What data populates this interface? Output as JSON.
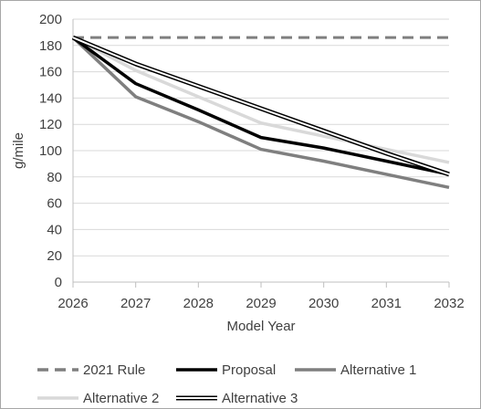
{
  "chart_data": {
    "type": "line",
    "title": "",
    "xlabel": "Model Year",
    "ylabel": "g/mile",
    "x": [
      2026,
      2027,
      2028,
      2029,
      2030,
      2031,
      2032
    ],
    "x_tick_labels": [
      "2026",
      "2027",
      "2028",
      "2029",
      "2030",
      "2031",
      "2032"
    ],
    "ylim": [
      0,
      200
    ],
    "y_ticks": [
      0,
      20,
      40,
      60,
      80,
      100,
      120,
      140,
      160,
      180,
      200
    ],
    "y_tick_labels": [
      "0",
      "20",
      "40",
      "60",
      "80",
      "100",
      "120",
      "140",
      "160",
      "180",
      "200"
    ],
    "grid": "horizontal",
    "legend_position": "bottom",
    "series": [
      {
        "name": "2021 Rule",
        "color": "#7f7f7f",
        "style": "dashed",
        "values": [
          186,
          186,
          186,
          186,
          186,
          186,
          186
        ]
      },
      {
        "name": "Proposal",
        "color": "#000000",
        "style": "solid",
        "values": [
          186,
          151,
          131,
          110,
          102,
          92,
          82
        ]
      },
      {
        "name": "Alternative 1",
        "color": "#7f7f7f",
        "style": "solid",
        "values": [
          186,
          141,
          122,
          101,
          92,
          82,
          72
        ]
      },
      {
        "name": "Alternative 2",
        "color": "#d9d9d9",
        "style": "solid",
        "values": [
          186,
          161,
          141,
          121,
          111,
          101,
          91
        ]
      },
      {
        "name": "Alternative 3",
        "color": "#000000",
        "style": "double",
        "values": [
          186,
          166,
          149,
          132,
          115,
          98,
          82
        ]
      }
    ]
  }
}
